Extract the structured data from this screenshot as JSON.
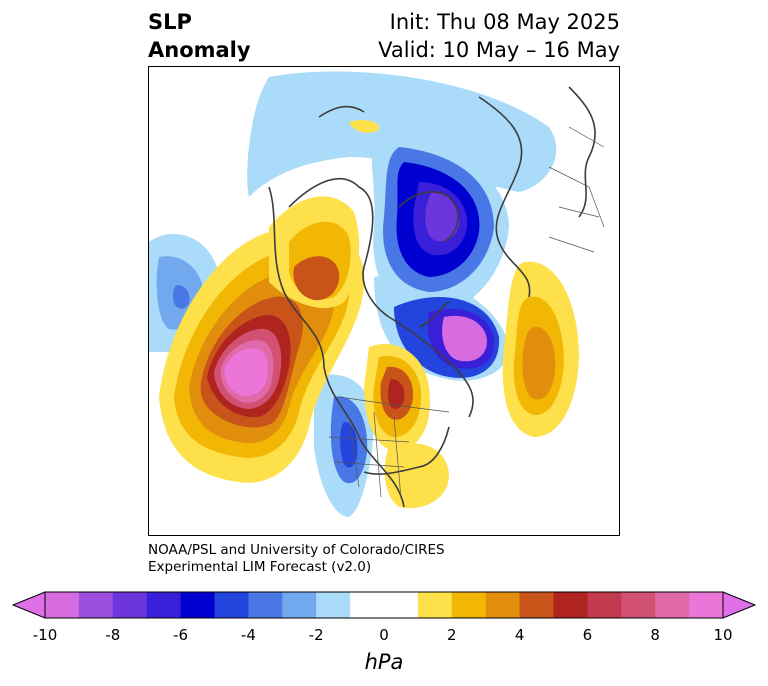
{
  "header": {
    "variable": "SLP",
    "type": "Anomaly",
    "init": "Init: Thu 08 May 2025",
    "valid": "Valid: 10 May – 16 May"
  },
  "credit": {
    "line1": "NOAA/PSL and University of Colorado/CIRES",
    "line2": "Experimental LIM Forecast (v2.0)"
  },
  "colorbar": {
    "units": "hPa",
    "tick_labels": [
      "-10",
      "-8",
      "-6",
      "-4",
      "-2",
      "0",
      "2",
      "4",
      "6",
      "8",
      "10"
    ],
    "colors": [
      "#d66ce0",
      "#9d4fdd",
      "#6d35dc",
      "#3a1fd8",
      "#0000d0",
      "#2344dd",
      "#4a77e6",
      "#72a8ee",
      "#aadcfa",
      "#ffffff",
      "#ffffff",
      "#fde04a",
      "#f2b705",
      "#e08e0b",
      "#c9541a",
      "#b0241f",
      "#c23a4d",
      "#d25072",
      "#e069a8",
      "#ec76d8"
    ],
    "extend_min_color": "#e070e8",
    "extend_max_color": "#e070e8"
  }
}
